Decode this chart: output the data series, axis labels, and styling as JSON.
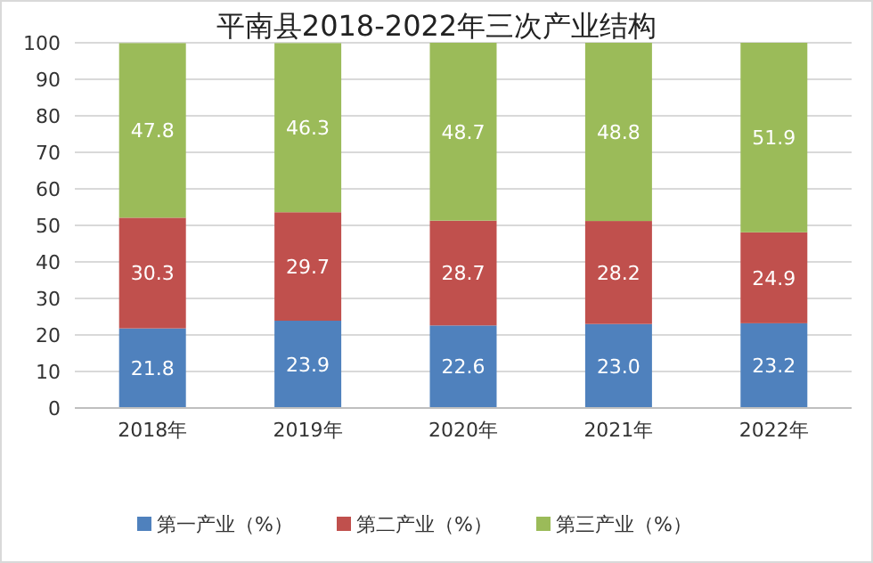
{
  "chart_data": {
    "type": "bar",
    "title": "平南县2018-2022年三次产业结构",
    "stacked": true,
    "categories": [
      "2018年",
      "2019年",
      "2020年",
      "2021年",
      "2022年"
    ],
    "series": [
      {
        "name": "第一产业（%）",
        "color": "#4f81bd",
        "values": [
          21.8,
          23.9,
          22.6,
          23.0,
          23.2
        ],
        "value_labels": [
          "21.8",
          "23.9",
          "22.6",
          "23.0",
          "23.2"
        ]
      },
      {
        "name": "第二产业（%）",
        "color": "#c0504d",
        "values": [
          30.3,
          29.7,
          28.7,
          28.2,
          24.9
        ],
        "value_labels": [
          "30.3",
          "29.7",
          "28.7",
          "28.2",
          "24.9"
        ]
      },
      {
        "name": "第三产业（%）",
        "color": "#9bbb59",
        "values": [
          47.8,
          46.3,
          48.7,
          48.8,
          51.9
        ],
        "value_labels": [
          "47.8",
          "46.3",
          "48.7",
          "48.8",
          "51.9"
        ]
      }
    ],
    "ylim": [
      0,
      100
    ],
    "yticks": [
      0,
      10,
      20,
      30,
      40,
      50,
      60,
      70,
      80,
      90,
      100
    ],
    "grid": "y",
    "legend": "bottom"
  }
}
